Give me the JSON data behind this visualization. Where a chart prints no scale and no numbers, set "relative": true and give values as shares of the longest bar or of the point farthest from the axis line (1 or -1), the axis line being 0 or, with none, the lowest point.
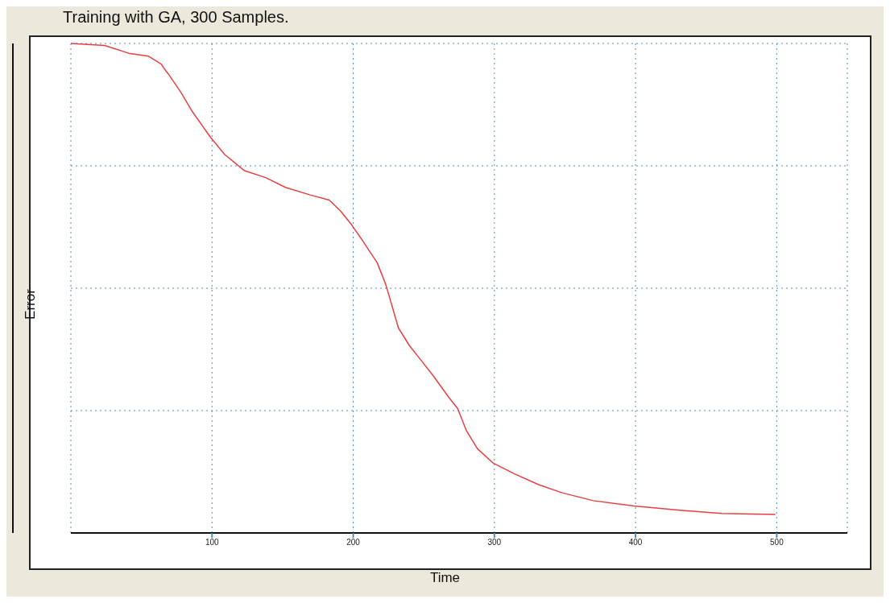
{
  "chart_data": {
    "type": "line",
    "title": "Training with GA, 300 Samples.",
    "xlabel": "Time",
    "ylabel": "Error",
    "relative": true,
    "xlim": [
      0,
      550
    ],
    "xticks": [
      100,
      200,
      300,
      400,
      500
    ],
    "grid": true,
    "marker": "none",
    "line_style": "solid",
    "series": [
      {
        "color": "#e84040",
        "x": [
          0,
          24,
          41,
          55,
          64,
          66,
          69,
          78,
          86,
          99,
          109,
          123,
          138,
          152,
          169,
          183,
          191,
          199,
          206,
          211,
          217,
          223,
          228,
          232,
          240,
          248,
          257,
          268,
          274,
          280,
          288,
          299,
          314,
          331,
          348,
          370,
          399,
          433,
          461,
          499
        ],
        "values": [
          1.0,
          0.996,
          0.98,
          0.974,
          0.958,
          0.949,
          0.938,
          0.9,
          0.861,
          0.808,
          0.773,
          0.74,
          0.726,
          0.706,
          0.691,
          0.68,
          0.658,
          0.629,
          0.6,
          0.578,
          0.552,
          0.508,
          0.459,
          0.419,
          0.382,
          0.353,
          0.32,
          0.276,
          0.254,
          0.21,
          0.172,
          0.143,
          0.121,
          0.099,
          0.082,
          0.066,
          0.055,
          0.046,
          0.04,
          0.038
        ]
      }
    ]
  }
}
